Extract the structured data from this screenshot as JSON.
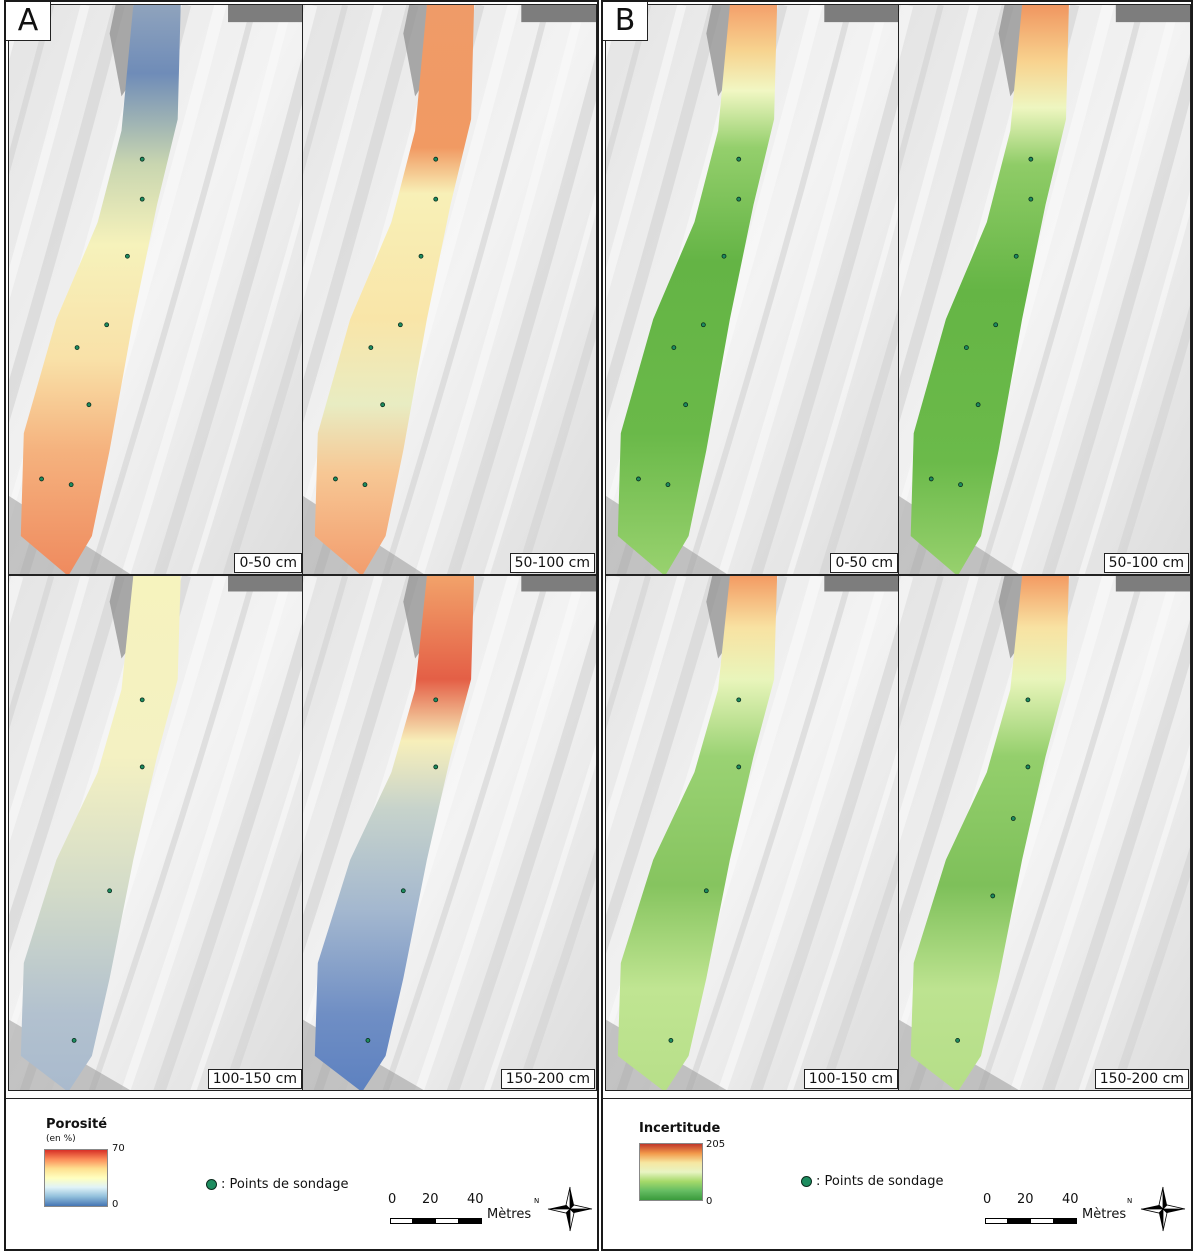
{
  "sections": [
    {
      "letter": "A",
      "panels": [
        {
          "label": "0-50 cm",
          "ramp": "porosity",
          "stops": [
            [
              0.0,
              "#8fa3bd"
            ],
            [
              0.12,
              "#6f8cb8"
            ],
            [
              0.28,
              "#c9d6b0"
            ],
            [
              0.42,
              "#f6f2bb"
            ],
            [
              0.62,
              "#f9e1a8"
            ],
            [
              0.78,
              "#f5b27e"
            ],
            [
              1.0,
              "#ef8a5e"
            ]
          ]
        },
        {
          "label": "50-100 cm",
          "ramp": "porosity",
          "stops": [
            [
              0.0,
              "#ef9b68"
            ],
            [
              0.25,
              "#f19a63"
            ],
            [
              0.33,
              "#f8f0b7"
            ],
            [
              0.55,
              "#f9e5a8"
            ],
            [
              0.7,
              "#e8ecc2"
            ],
            [
              0.82,
              "#f7c794"
            ],
            [
              1.0,
              "#f29c6d"
            ]
          ]
        },
        {
          "label": "100-150 cm",
          "ramp": "porosity",
          "stops": [
            [
              0.0,
              "#f6f3be"
            ],
            [
              0.35,
              "#f4f1c2"
            ],
            [
              0.6,
              "#d4dcc8"
            ],
            [
              0.85,
              "#b2c1cf"
            ],
            [
              1.0,
              "#a9bacd"
            ]
          ]
        },
        {
          "label": "150-200 cm",
          "ramp": "porosity",
          "stops": [
            [
              0.0,
              "#f2a26a"
            ],
            [
              0.2,
              "#e45f46"
            ],
            [
              0.32,
              "#f7efba"
            ],
            [
              0.45,
              "#c7d3cb"
            ],
            [
              0.65,
              "#a3b7cf"
            ],
            [
              0.85,
              "#6f8ec4"
            ],
            [
              1.0,
              "#5d81c0"
            ]
          ]
        }
      ],
      "legend": {
        "title": "Porosité",
        "unit": "(en %)",
        "max": "70",
        "min": "0",
        "ramp_colors": [
          "#d73027",
          "#fc8d59",
          "#fee090",
          "#ffffbf",
          "#e0f3f8",
          "#91bfdb",
          "#4575b4"
        ]
      }
    },
    {
      "letter": "B",
      "panels": [
        {
          "label": "0-50 cm",
          "ramp": "uncertainty",
          "stops": [
            [
              0.0,
              "#f4a06b"
            ],
            [
              0.08,
              "#f7d38f"
            ],
            [
              0.15,
              "#f1f7c3"
            ],
            [
              0.25,
              "#94cf6c"
            ],
            [
              0.45,
              "#64b445"
            ],
            [
              0.75,
              "#6ab949"
            ],
            [
              1.0,
              "#99d26f"
            ]
          ]
        },
        {
          "label": "50-100 cm",
          "ramp": "uncertainty",
          "stops": [
            [
              0.0,
              "#f09660"
            ],
            [
              0.1,
              "#f8d38f"
            ],
            [
              0.18,
              "#eef6c0"
            ],
            [
              0.28,
              "#8fcc67"
            ],
            [
              0.5,
              "#65b545"
            ],
            [
              0.8,
              "#6bba4a"
            ],
            [
              1.0,
              "#98d16e"
            ]
          ]
        },
        {
          "label": "100-150 cm",
          "ramp": "uncertainty",
          "stops": [
            [
              0.0,
              "#f39b63"
            ],
            [
              0.1,
              "#f8e2a2"
            ],
            [
              0.2,
              "#e9f5bb"
            ],
            [
              0.35,
              "#9ad273"
            ],
            [
              0.6,
              "#86c45f"
            ],
            [
              0.8,
              "#c0e592"
            ],
            [
              1.0,
              "#b7df89"
            ]
          ]
        },
        {
          "label": "150-200 cm",
          "ramp": "uncertainty",
          "stops": [
            [
              0.0,
              "#f39b63"
            ],
            [
              0.1,
              "#f8e2a2"
            ],
            [
              0.2,
              "#e9f5bb"
            ],
            [
              0.35,
              "#94cf6c"
            ],
            [
              0.6,
              "#7ec05a"
            ],
            [
              0.8,
              "#bde390"
            ],
            [
              1.0,
              "#b5de88"
            ]
          ]
        }
      ],
      "legend": {
        "title": "Incertitude",
        "unit": "",
        "max": "205",
        "min": "0",
        "ramp_colors": [
          "#c0392b",
          "#f2994a",
          "#f6e7a1",
          "#e8f4c3",
          "#a6d96a",
          "#66bd63",
          "#3a9a3c"
        ]
      }
    }
  ],
  "points_legend": ": Points de sondage",
  "scale": {
    "ticks": [
      "0",
      "20",
      "40"
    ],
    "unit": "Mètres"
  },
  "north_label": "N",
  "point_color": "#1d8c5f"
}
